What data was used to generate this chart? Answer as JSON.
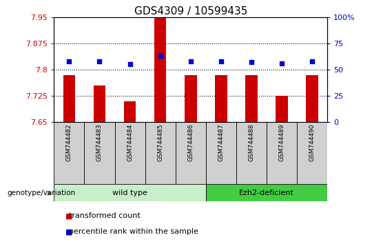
{
  "title": "GDS4309 / 10599435",
  "samples": [
    "GSM744482",
    "GSM744483",
    "GSM744484",
    "GSM744485",
    "GSM744486",
    "GSM744487",
    "GSM744488",
    "GSM744489",
    "GSM744490"
  ],
  "bar_values": [
    7.785,
    7.755,
    7.71,
    7.95,
    7.785,
    7.785,
    7.785,
    7.725,
    7.785
  ],
  "percentile_values": [
    58,
    58,
    55,
    63,
    58,
    58,
    57,
    56,
    58
  ],
  "ylim_left": [
    7.65,
    7.95
  ],
  "ylim_right": [
    0,
    100
  ],
  "yticks_left": [
    7.65,
    7.725,
    7.8,
    7.875,
    7.95
  ],
  "ytick_labels_left": [
    "7.65",
    "7.725",
    "7.8",
    "7.875",
    "7.95"
  ],
  "yticks_right": [
    0,
    25,
    50,
    75,
    100
  ],
  "ytick_labels_right": [
    "0",
    "25",
    "50",
    "75",
    "100%"
  ],
  "bar_color": "#cc0000",
  "dot_color": "#0000cc",
  "bar_width": 0.4,
  "grid_ticks": [
    7.875,
    7.8,
    7.725
  ],
  "groups": [
    {
      "label": "wild type",
      "start": 0,
      "end": 5,
      "color": "#c8f0c8"
    },
    {
      "label": "Ezh2-deficient",
      "start": 5,
      "end": 9,
      "color": "#44cc44"
    }
  ],
  "group_label": "genotype/variation",
  "legend_items": [
    {
      "color": "#cc0000",
      "label": "transformed count"
    },
    {
      "color": "#0000cc",
      "label": "percentile rank within the sample"
    }
  ],
  "title_fontsize": 11,
  "tick_label_color_left": "#cc0000",
  "tick_label_color_right": "#0000cc",
  "bg_color": "#ffffff"
}
